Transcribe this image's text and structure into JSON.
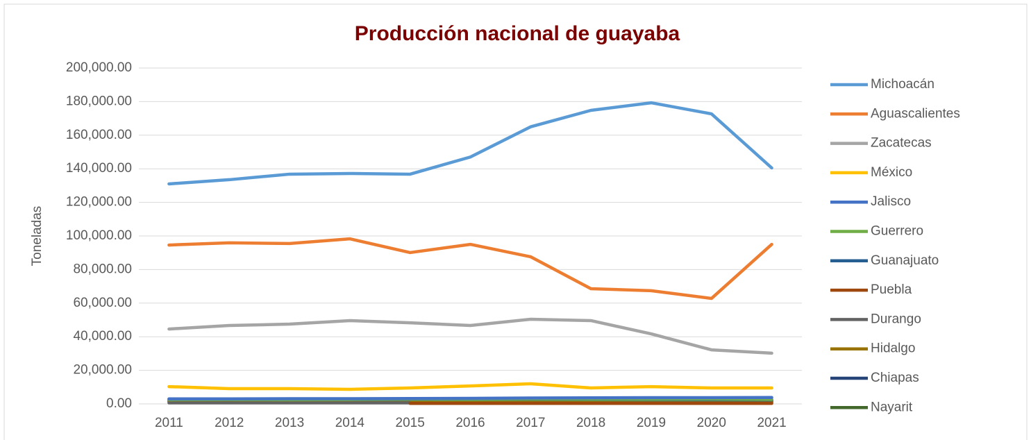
{
  "chart_data": {
    "type": "line",
    "title": "Producción nacional de guayaba",
    "y_label": "Toneladas",
    "x": [
      "2011",
      "2012",
      "2013",
      "2014",
      "2015",
      "2016",
      "2017",
      "2018",
      "2019",
      "2020",
      "2021"
    ],
    "ylim": [
      0,
      200000
    ],
    "yticks": [
      {
        "value": 0,
        "label": "0.00"
      },
      {
        "value": 20000,
        "label": "20,000.00"
      },
      {
        "value": 40000,
        "label": "40,000.00"
      },
      {
        "value": 60000,
        "label": "60,000.00"
      },
      {
        "value": 80000,
        "label": "80,000.00"
      },
      {
        "value": 100000,
        "label": "100,000.00"
      },
      {
        "value": 120000,
        "label": "120,000.00"
      },
      {
        "value": 140000,
        "label": "140,000.00"
      },
      {
        "value": 160000,
        "label": "160,000.00"
      },
      {
        "value": 180000,
        "label": "180,000.00"
      },
      {
        "value": 200000,
        "label": "200,000.00"
      }
    ],
    "grid": true,
    "legend": "right",
    "series": [
      {
        "name": "Michoacán",
        "color": "#5b9bd5",
        "values": [
          131000,
          133500,
          136800,
          137200,
          136800,
          147000,
          165000,
          174800,
          179300,
          172700,
          140500
        ]
      },
      {
        "name": "Aguascalientes",
        "color": "#ed7d31",
        "values": [
          94600,
          95900,
          95500,
          98300,
          90100,
          95000,
          87600,
          68600,
          67400,
          62800,
          95000
        ]
      },
      {
        "name": "Zacatecas",
        "color": "#a5a5a5",
        "values": [
          44600,
          46700,
          47500,
          49600,
          48300,
          46700,
          50400,
          49600,
          41700,
          32200,
          30200
        ]
      },
      {
        "name": "México",
        "color": "#ffc000",
        "values": [
          10300,
          9100,
          9100,
          8700,
          9500,
          10700,
          12000,
          9500,
          10300,
          9500,
          9500
        ]
      },
      {
        "name": "Jalisco",
        "color": "#4472c4",
        "values": [
          3000,
          3000,
          3100,
          3100,
          3200,
          3300,
          3500,
          3600,
          3700,
          3700,
          3800
        ]
      },
      {
        "name": "Guerrero",
        "color": "#70ad47",
        "values": [
          2500,
          2600,
          2500,
          2600,
          2800,
          2700,
          2900,
          2800,
          2800,
          2900,
          2700
        ]
      },
      {
        "name": "Guanajuato",
        "color": "#255e91",
        "values": [
          2800,
          2700,
          2700,
          2600,
          2700,
          2600,
          2700,
          2600,
          2500,
          2500,
          2400
        ]
      },
      {
        "name": "Puebla",
        "color": "#9e480e",
        "values": [
          null,
          null,
          null,
          null,
          300,
          300,
          300,
          300,
          300,
          300,
          300
        ]
      },
      {
        "name": "Durango",
        "color": "#636363",
        "values": [
          600,
          600,
          600,
          600,
          600,
          null,
          null,
          null,
          null,
          null,
          null
        ]
      },
      {
        "name": "Hidalgo",
        "color": "#997300",
        "values": [
          1200,
          1200,
          1100,
          1100,
          1100,
          1200,
          1100,
          1100,
          1000,
          1000,
          1000
        ]
      },
      {
        "name": "Chiapas",
        "color": "#264478",
        "values": [
          1500,
          1500,
          1400,
          1400,
          1400,
          1500,
          1400,
          1400,
          1300,
          1300,
          1300
        ]
      },
      {
        "name": "Nayarit",
        "color": "#43682b",
        "values": [
          2000,
          2000,
          1900,
          1900,
          2000,
          2000,
          1900,
          1900,
          1800,
          1800,
          1800
        ]
      }
    ]
  }
}
